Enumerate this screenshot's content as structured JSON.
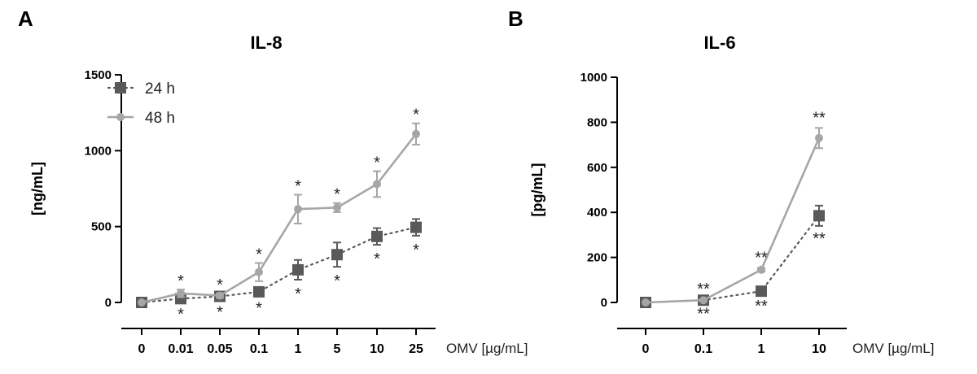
{
  "chart_data": [
    {
      "type": "line",
      "panel_label": "A",
      "title": "IL-8",
      "ylabel": "[ng/mL]",
      "xlabel": "OMV [µg/mL]",
      "ylim": [
        0,
        1500
      ],
      "yticks": [
        0,
        500,
        1000,
        1500
      ],
      "categories": [
        "0",
        "0.01",
        "0.05",
        "0.1",
        "1",
        "5",
        "10",
        "25"
      ],
      "legend": {
        "placement": "top-left",
        "entries": [
          "24 h",
          "48 h"
        ]
      },
      "series": [
        {
          "name": "24 h",
          "color": "#595959",
          "marker": "square",
          "line_style": "dotted",
          "values": [
            0,
            25,
            40,
            70,
            215,
            315,
            435,
            495
          ],
          "errors": [
            0,
            10,
            10,
            15,
            65,
            80,
            55,
            55
          ],
          "annotations": [
            "",
            "*",
            "*",
            "*",
            "*",
            "*",
            "*",
            "*"
          ],
          "annotation_position": "below"
        },
        {
          "name": "48 h",
          "color": "#a6a6a6",
          "marker": "circle",
          "line_style": "solid",
          "values": [
            0,
            60,
            45,
            200,
            615,
            625,
            780,
            1110
          ],
          "errors": [
            0,
            25,
            15,
            60,
            95,
            30,
            85,
            70
          ],
          "annotations": [
            "",
            "*",
            "*",
            "*",
            "*",
            "*",
            "*",
            "*"
          ],
          "annotation_position": "above"
        }
      ]
    },
    {
      "type": "line",
      "panel_label": "B",
      "title": "IL-6",
      "ylabel": "[pg/mL]",
      "xlabel": "OMV [µg/mL]",
      "ylim": [
        0,
        1000
      ],
      "yticks": [
        0,
        200,
        400,
        600,
        800,
        1000
      ],
      "categories": [
        "0",
        "0.1",
        "1",
        "10"
      ],
      "series": [
        {
          "name": "24 h",
          "color": "#595959",
          "marker": "square",
          "line_style": "dotted",
          "values": [
            0,
            10,
            50,
            385
          ],
          "errors": [
            0,
            5,
            10,
            45
          ],
          "annotations": [
            "",
            "**",
            "**",
            "**"
          ],
          "annotation_position": "below"
        },
        {
          "name": "48 h",
          "color": "#a6a6a6",
          "marker": "circle",
          "line_style": "solid",
          "values": [
            0,
            10,
            145,
            730
          ],
          "errors": [
            0,
            5,
            8,
            45
          ],
          "annotations": [
            "",
            "**",
            "**",
            "**"
          ],
          "annotation_position": "above"
        }
      ]
    }
  ]
}
